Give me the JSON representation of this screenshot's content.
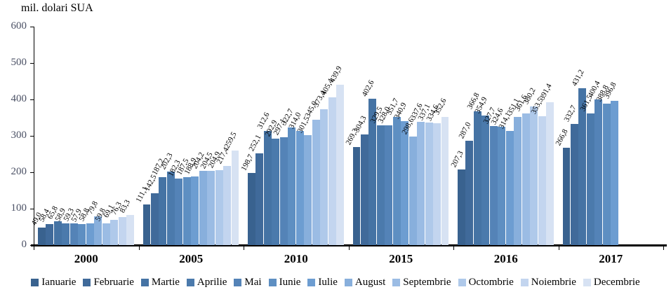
{
  "title": "mil. dolari SUA",
  "chart_data": {
    "type": "bar",
    "title": "mil. dolari SUA",
    "xlabel": "",
    "ylabel": "mil. dolari SUA",
    "ylim": [
      0,
      600
    ],
    "yticks": [
      0,
      100,
      200,
      300,
      400,
      500,
      600
    ],
    "grid": false,
    "legend_position": "bottom",
    "decimal_separator": ",",
    "bar_label_rotation_deg": -62,
    "categories": [
      "2000",
      "2005",
      "2010",
      "2015",
      "2016",
      "2017"
    ],
    "series": [
      {
        "name": "Ianuarie",
        "color": "#39628F",
        "values": [
          49.0,
          111.1,
          198.7,
          269.3,
          207.3,
          266.8
        ]
      },
      {
        "name": "Februarie",
        "color": "#406A9A",
        "values": [
          58.4,
          142.5,
          252.1,
          304.3,
          287.0,
          332.7
        ]
      },
      {
        "name": "Martie",
        "color": "#4573A4",
        "values": [
          65.8,
          187.2,
          312.6,
          402.6,
          366.8,
          431.2
        ]
      },
      {
        "name": "Aprilie",
        "color": "#4B7AAC",
        "values": [
          58.9,
          202.3,
          292.9,
          329.5,
          354.9,
          361.5
        ]
      },
      {
        "name": "Mai",
        "color": "#5483B7",
        "values": [
          59.3,
          182.3,
          297.1,
          328.0,
          327.7,
          400.4
        ]
      },
      {
        "name": "Iunie",
        "color": "#5E8FC2",
        "values": [
          57.9,
          187.5,
          322.7,
          351.7,
          324.6,
          388.8
        ]
      },
      {
        "name": "Iulie",
        "color": "#6D9DD1",
        "values": [
          58.8,
          188.9,
          314.0,
          340.9,
          314.1,
          396.8
        ]
      },
      {
        "name": "August",
        "color": "#88AFDC",
        "values": [
          79.8,
          204.2,
          301.5,
          298.6,
          351.1,
          null
        ]
      },
      {
        "name": "Septembrie",
        "color": "#9BBCE4",
        "values": [
          59.8,
          204.5,
          345.0,
          337.6,
          361.6,
          null
        ]
      },
      {
        "name": "Octombrie",
        "color": "#AFC9EA",
        "values": [
          69.1,
          204.9,
          373.4,
          337.1,
          380.2,
          null
        ]
      },
      {
        "name": "Noiembrie",
        "color": "#C3D5EF",
        "values": [
          76.3,
          217.4,
          405.4,
          334.6,
          353.5,
          null
        ]
      },
      {
        "name": "Decembrie",
        "color": "#D7E2F3",
        "values": [
          83.3,
          259.5,
          439.9,
          352.6,
          391.4,
          null
        ]
      }
    ]
  },
  "colors": {
    "axis_line": "#000000",
    "axis_tick_label": "#4b5165",
    "bar_value_label": "#000000",
    "background": "#ffffff"
  }
}
